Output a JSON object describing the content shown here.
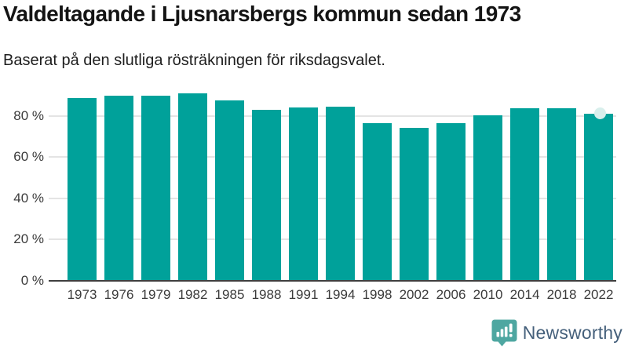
{
  "header": {
    "title": "Valdeltagande i Ljusnarsbergs kommun sedan 1973",
    "subtitle": "Baserat på den slutliga rösträkningen för riksdagsvalet."
  },
  "chart_data": {
    "type": "bar",
    "title": "Valdeltagande i Ljusnarsbergs kommun sedan 1973",
    "subtitle": "Baserat på den slutliga rösträkningen för riksdagsvalet.",
    "categories": [
      "1973",
      "1976",
      "1979",
      "1982",
      "1985",
      "1988",
      "1991",
      "1994",
      "1998",
      "2002",
      "2006",
      "2010",
      "2014",
      "2018",
      "2022"
    ],
    "values": [
      88.9,
      89.9,
      89.7,
      90.9,
      87.4,
      83.2,
      84.0,
      84.6,
      76.4,
      74.3,
      76.6,
      80.4,
      83.6,
      83.6,
      81.0
    ],
    "unit": "%",
    "xlabel": "",
    "ylabel": "",
    "y_ticks": [
      "0 %",
      "20 %",
      "40 %",
      "60 %",
      "80 %"
    ],
    "y_tick_values": [
      0,
      20,
      40,
      60,
      80
    ],
    "ylim": [
      0,
      95.2
    ],
    "grid": true,
    "legend": "none",
    "bar_color": "#00a19a",
    "highlight_last_bar_notch": true
  },
  "colors": {
    "bar": "#00a19a",
    "notch": "#d8efec",
    "grid": "#e4e4e4",
    "axis_line": "#3f3f3f",
    "tick_text": "#3b3b3b",
    "title_text": "#141414",
    "logo_teal": "#4ea7a1",
    "logo_text": "#45607b"
  },
  "branding": {
    "label": "Newsworthy"
  }
}
